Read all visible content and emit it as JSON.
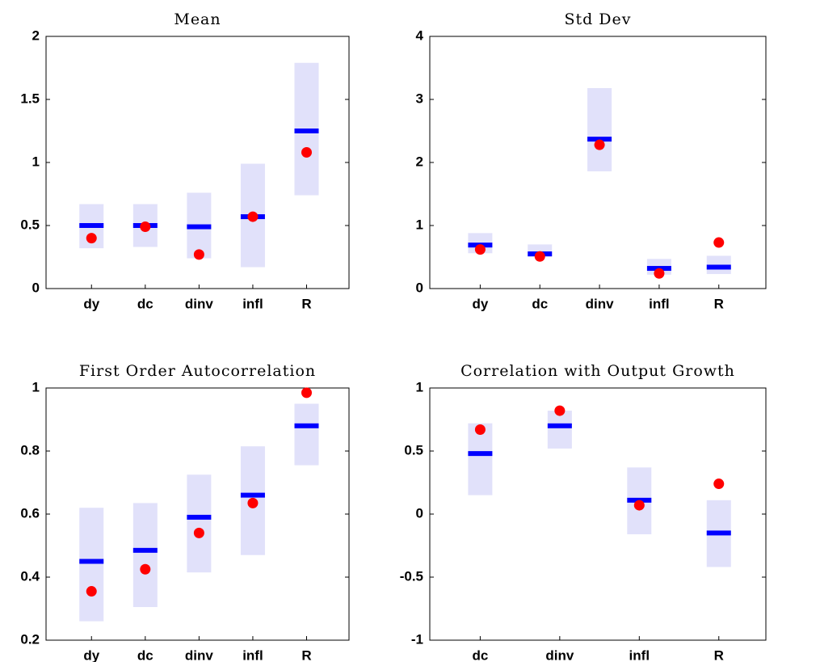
{
  "chart_data": [
    {
      "type": "interval",
      "title": "Mean",
      "categories": [
        "dy",
        "dc",
        "dinv",
        "infl",
        "R"
      ],
      "low": [
        0.32,
        0.33,
        0.24,
        0.17,
        0.74
      ],
      "high": [
        0.67,
        0.67,
        0.76,
        0.99,
        1.79
      ],
      "median": [
        0.5,
        0.5,
        0.49,
        0.57,
        1.25
      ],
      "actual": [
        0.4,
        0.49,
        0.27,
        0.57,
        1.08
      ],
      "ylim": [
        0,
        2
      ],
      "yticks": [
        0,
        0.5,
        1,
        1.5,
        2
      ],
      "band_color": "#e1e1fa",
      "median_color": "#0000ff",
      "point_color": "#ff0000"
    },
    {
      "type": "interval",
      "title": "Std Dev",
      "categories": [
        "dy",
        "dc",
        "dinv",
        "infl",
        "R"
      ],
      "low": [
        0.56,
        0.5,
        1.86,
        0.22,
        0.23
      ],
      "high": [
        0.88,
        0.7,
        3.18,
        0.47,
        0.52
      ],
      "median": [
        0.69,
        0.55,
        2.37,
        0.32,
        0.34
      ],
      "actual": [
        0.62,
        0.51,
        2.28,
        0.24,
        0.73
      ],
      "ylim": [
        0,
        4
      ],
      "yticks": [
        0,
        1,
        2,
        3,
        4
      ],
      "band_color": "#e1e1fa",
      "median_color": "#0000ff",
      "point_color": "#ff0000"
    },
    {
      "type": "interval",
      "title": "First Order Autocorrelation",
      "categories": [
        "dy",
        "dc",
        "dinv",
        "infl",
        "R"
      ],
      "low": [
        0.26,
        0.305,
        0.415,
        0.47,
        0.755
      ],
      "high": [
        0.62,
        0.635,
        0.725,
        0.815,
        0.95
      ],
      "median": [
        0.45,
        0.485,
        0.59,
        0.66,
        0.88
      ],
      "actual": [
        0.355,
        0.425,
        0.54,
        0.635,
        0.985
      ],
      "ylim": [
        0.2,
        1
      ],
      "yticks": [
        0.2,
        0.4,
        0.6,
        0.8,
        1
      ],
      "band_color": "#e1e1fa",
      "median_color": "#0000ff",
      "point_color": "#ff0000"
    },
    {
      "type": "interval",
      "title": "Correlation with Output Growth",
      "categories": [
        "dc",
        "dinv",
        "infl",
        "R"
      ],
      "low": [
        0.15,
        0.52,
        -0.16,
        -0.42
      ],
      "high": [
        0.72,
        0.82,
        0.37,
        0.11
      ],
      "median": [
        0.48,
        0.7,
        0.11,
        -0.15
      ],
      "actual": [
        0.67,
        0.82,
        0.07,
        0.24
      ],
      "ylim": [
        -1,
        1
      ],
      "yticks": [
        -1,
        -0.5,
        0,
        0.5,
        1
      ],
      "band_color": "#e1e1fa",
      "median_color": "#0000ff",
      "point_color": "#ff0000"
    }
  ]
}
